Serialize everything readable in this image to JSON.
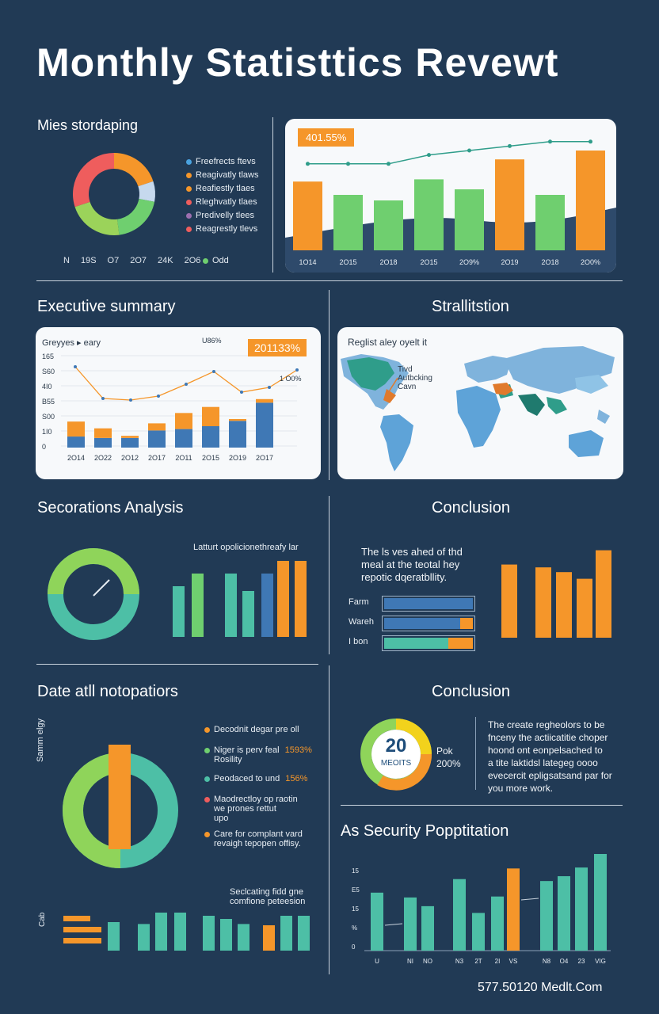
{
  "title": "Monthly Statisttics Revewt",
  "colors": {
    "background": "#213a55",
    "orange": "#f5962a",
    "green": "#6fcf6f",
    "teal": "#4dbfa6",
    "blue": "#3f78b5",
    "lightgreen": "#8fd45a",
    "red": "#ef5d5d",
    "yellow": "#f2d21c"
  },
  "section1": {
    "heading": "Mies stordaping",
    "legend": [
      "Freefrects ftevs",
      "Reagivatly tlaws",
      "Reafiestly tlaes",
      "Rleghvatly tlaes",
      "Predivelly tlees",
      "Reagrestly tlevs"
    ],
    "ticks": [
      "N",
      "19S",
      "O7",
      "2O7",
      "24K",
      "2O6"
    ],
    "odd_label": "Odd",
    "donut": [
      {
        "color": "#f5962a",
        "value": 20
      },
      {
        "color": "#c6d9ee",
        "value": 8
      },
      {
        "color": "#6fcf6f",
        "value": 20
      },
      {
        "color": "#9bd35a",
        "value": 22
      },
      {
        "color": "#ef5d5d",
        "value": 30
      }
    ]
  },
  "top_chart": {
    "badge": "401.55%",
    "bars": [
      {
        "color": "#f5962a",
        "value": 0.62
      },
      {
        "color": "#6fcf6f",
        "value": 0.5
      },
      {
        "color": "#6fcf6f",
        "value": 0.45
      },
      {
        "color": "#6fcf6f",
        "value": 0.64
      },
      {
        "color": "#6fcf6f",
        "value": 0.55
      },
      {
        "color": "#f5962a",
        "value": 0.82
      },
      {
        "color": "#6fcf6f",
        "value": 0.5
      },
      {
        "color": "#f5962a",
        "value": 0.9
      }
    ],
    "labels": [
      "1O14",
      "2O15",
      "2O18",
      "2O15",
      "2O9%",
      "2O19",
      "2O18",
      "2O0%"
    ],
    "line": [
      0.78,
      0.78,
      0.78,
      0.86,
      0.9,
      0.94,
      0.98,
      0.98
    ]
  },
  "executive": {
    "heading": "Executive summary",
    "chart_title": "Greyyes ▸ eary",
    "badge": "201133%",
    "note_top": "U86%",
    "note_right": "1 O0%",
    "yticks": [
      "165",
      "S60",
      "4I0",
      "B55",
      "S00",
      "1I0",
      "0"
    ],
    "xlabels": [
      "2O14",
      "2O22",
      "2O12",
      "2O17",
      "2O11",
      "2O15",
      "2O19",
      "2O17"
    ],
    "bars": [
      {
        "bottom": 0.31,
        "top": 0.42
      },
      {
        "bottom": 0.27,
        "top": 0.27
      },
      {
        "bottom": 0.27,
        "top": 0.06
      },
      {
        "bottom": 0.48,
        "top": 0.2
      },
      {
        "bottom": 0.52,
        "top": 0.45
      },
      {
        "bottom": 0.6,
        "top": 0.54
      },
      {
        "bottom": 0.75,
        "top": 0.05
      },
      {
        "bottom": 1.26,
        "top": 0.1
      }
    ],
    "line": [
      1.02,
      0.62,
      0.6,
      0.65,
      0.8,
      0.96,
      0.7,
      0.76,
      0.98
    ]
  },
  "map": {
    "heading": "Strallitstion",
    "chart_title": "Reglist aley oyelt it",
    "annotation": [
      "Tivd",
      "Autbcking",
      "Cavn"
    ]
  },
  "sectors": {
    "heading": "Secorations Analysis",
    "caption": "Latturt opolicionethreafy lar",
    "bars": [
      {
        "color": "#4dbfa6",
        "value": 0.64
      },
      {
        "color": "#6fcf6f",
        "value": 0.8
      },
      {
        "color": "#4dbfa6",
        "value": 0.8
      },
      {
        "color": "#4dbfa6",
        "value": 0.58
      },
      {
        "color": "#3f78b5",
        "value": 0.8
      },
      {
        "color": "#f5962a",
        "value": 0.96
      },
      {
        "color": "#f5962a",
        "value": 0.96
      }
    ]
  },
  "conclusion1": {
    "heading": "Conclusion",
    "text": [
      "The ls ves ahed of thd",
      "meal at the teotal hey",
      "repotic dqeratbllity."
    ],
    "rows": [
      {
        "label": "Farm",
        "fill": 1.0,
        "color": "#3f78b5",
        "badge": 0
      },
      {
        "label": "Wareh",
        "fill": 0.86,
        "color": "#3f78b5",
        "badge": 0.14
      },
      {
        "label": "I bon",
        "fill": 0.72,
        "color": "#4dbfa6",
        "badge": 0.28
      }
    ],
    "bars": [
      {
        "color": "#f5962a",
        "value": 0.77
      },
      {
        "color": "#f5962a",
        "value": 0.74
      },
      {
        "color": "#f5962a",
        "value": 0.69
      },
      {
        "color": "#f5962a",
        "value": 0.62
      },
      {
        "color": "#f5962a",
        "value": 0.92
      }
    ]
  },
  "operations": {
    "heading": "Date atll notopatiors",
    "side_label": "Samm elgy",
    "items": [
      {
        "color": "#f5962a",
        "lines": [
          "Decodnit degar pre oll"
        ]
      },
      {
        "color": "#6fcf6f",
        "lines": [
          "Niger is perv feal",
          "Rosility"
        ],
        "value": "1593%"
      },
      {
        "color": "#4dbfa6",
        "lines": [
          "Peodaced to und"
        ],
        "value": "156%"
      },
      {
        "color": "#ef5d5d",
        "lines": [
          "Maodrectloy op raotin",
          "we prones rettut",
          "upo"
        ]
      },
      {
        "color": "#f5962a",
        "lines": [
          "Care for complant vard",
          "revaigh tepopen offisy."
        ]
      }
    ],
    "caption": [
      "Seclcating fidd gne",
      "comfione peteesion"
    ],
    "lower_label": "Cab",
    "bars": [
      {
        "color": "#4dbfa6",
        "value": 0.45
      },
      {
        "color": "#4dbfa6",
        "value": 0.42
      },
      {
        "color": "#4dbfa6",
        "value": 0.6
      },
      {
        "color": "#4dbfa6",
        "value": 0.6
      },
      {
        "color": "#4dbfa6",
        "value": 0.55
      },
      {
        "color": "#4dbfa6",
        "value": 0.5
      },
      {
        "color": "#4dbfa6",
        "value": 0.42
      },
      {
        "color": "#f5962a",
        "value": 0.4
      },
      {
        "color": "#4dbfa6",
        "value": 0.55
      },
      {
        "color": "#4dbfa6",
        "value": 0.55
      }
    ]
  },
  "conclusion2": {
    "heading": "Conclusion",
    "gauge_value": "20",
    "gauge_sub": "MEOITS",
    "side_a": "Pok",
    "side_b": "200%",
    "text": [
      "The create regheolors to be",
      "fnceny the actiicatitie choper",
      "hoond ont eonpelsached to",
      "a tite laktidsl lategeg oooo",
      "evecercit epligsatsand par for",
      "you more work."
    ]
  },
  "security": {
    "heading": "As Security Popptitation",
    "yticks": [
      "15",
      "E5",
      "15",
      "%",
      "0"
    ],
    "xlabels": [
      "U",
      "NI",
      "NO",
      "N3",
      "2T",
      "2I",
      "VS",
      "N8",
      "O4",
      "23",
      "VIG"
    ],
    "bars": [
      {
        "color": "#4dbfa6",
        "value": 0.6
      },
      {
        "color": "#4dbfa6",
        "value": 0.55
      },
      {
        "color": "#4dbfa6",
        "value": 0.46
      },
      {
        "color": "#4dbfa6",
        "value": 0.74
      },
      {
        "color": "#4dbfa6",
        "value": 0.39
      },
      {
        "color": "#4dbfa6",
        "value": 0.56
      },
      {
        "color": "#f5962a",
        "value": 0.85
      },
      {
        "color": "#4dbfa6",
        "value": 0.72
      },
      {
        "color": "#4dbfa6",
        "value": 0.77
      },
      {
        "color": "#4dbfa6",
        "value": 0.86
      },
      {
        "color": "#4dbfa6",
        "value": 1.0
      }
    ]
  },
  "footer": "577.50120 Medlt.Com"
}
